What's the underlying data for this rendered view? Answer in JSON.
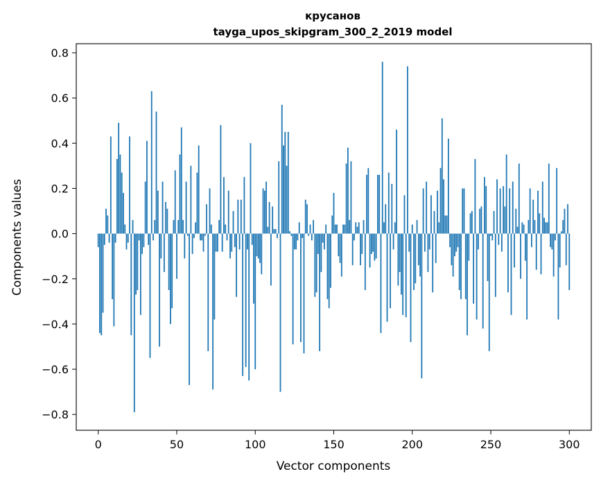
{
  "chart_data": {
    "type": "bar",
    "title": "крусанов",
    "subtitle": "tayga_upos_skipgram_300_2_2019 model",
    "xlabel": "Vector components",
    "ylabel": "Components values",
    "xlim": [
      -14,
      314
    ],
    "ylim": [
      -0.87,
      0.84
    ],
    "xticks": [
      0,
      50,
      100,
      150,
      200,
      250,
      300
    ],
    "xtick_labels": [
      "0",
      "50",
      "100",
      "150",
      "200",
      "250",
      "300"
    ],
    "yticks": [
      -0.8,
      -0.6,
      -0.4,
      -0.2,
      0.0,
      0.2,
      0.4,
      0.6,
      0.8
    ],
    "ytick_labels": [
      "−0.8",
      "−0.6",
      "−0.4",
      "−0.2",
      "0.0",
      "0.2",
      "0.4",
      "0.6",
      "0.8"
    ],
    "bar_color": "#1f77b4",
    "series": [
      {
        "name": "components",
        "values": [
          -0.06,
          -0.44,
          -0.45,
          -0.35,
          -0.05,
          0.11,
          0.08,
          -0.04,
          0.43,
          -0.29,
          -0.41,
          -0.04,
          0.33,
          0.49,
          0.35,
          0.27,
          0.18,
          0.04,
          -0.07,
          -0.04,
          0.43,
          -0.45,
          0.06,
          -0.79,
          -0.27,
          -0.25,
          -0.03,
          -0.36,
          -0.09,
          -0.06,
          0.23,
          0.41,
          -0.05,
          -0.55,
          0.63,
          -0.03,
          0.06,
          0.54,
          0.19,
          -0.5,
          -0.11,
          0.23,
          -0.17,
          0.14,
          0.11,
          -0.25,
          -0.4,
          -0.33,
          0.06,
          0.28,
          -0.2,
          0.06,
          0.35,
          0.47,
          0.06,
          -0.11,
          0.23,
          -0.01,
          -0.67,
          0.3,
          -0.09,
          -0.02,
          0.05,
          0.27,
          0.39,
          -0.03,
          -0.03,
          -0.08,
          -0.01,
          0.13,
          -0.52,
          0.2,
          0.04,
          -0.69,
          -0.38,
          -0.08,
          -0.08,
          0.06,
          0.48,
          -0.08,
          0.25,
          0.04,
          -0.03,
          0.19,
          -0.11,
          -0.08,
          0.1,
          -0.06,
          -0.28,
          0.15,
          -0.07,
          0.15,
          -0.63,
          0.25,
          -0.59,
          -0.07,
          -0.65,
          0.4,
          -0.05,
          -0.31,
          -0.6,
          -0.1,
          -0.11,
          -0.13,
          -0.18,
          0.2,
          0.19,
          0.23,
          0.03,
          0.14,
          -0.23,
          0.12,
          0.02,
          0.02,
          -0.02,
          0.32,
          -0.7,
          0.57,
          0.39,
          0.45,
          0.3,
          0.45,
          0.01,
          -0.01,
          -0.49,
          -0.07,
          -0.07,
          -0.03,
          0.05,
          -0.48,
          -0.02,
          -0.53,
          0.15,
          0.13,
          -0.01,
          0.04,
          -0.03,
          0.06,
          -0.28,
          -0.26,
          -0.09,
          -0.52,
          -0.17,
          -0.04,
          -0.07,
          0.04,
          -0.29,
          -0.33,
          -0.24,
          0.08,
          0.18,
          0.04,
          0.04,
          -0.1,
          -0.13,
          -0.19,
          0.04,
          0.04,
          0.31,
          0.38,
          0.06,
          0.32,
          -0.14,
          -0.03,
          0.05,
          0.03,
          0.05,
          -0.14,
          -0.09,
          0.06,
          -0.25,
          0.26,
          0.29,
          -0.15,
          -0.09,
          -0.08,
          -0.12,
          -0.11,
          0.26,
          0.26,
          -0.44,
          0.76,
          0.05,
          0.13,
          -0.39,
          0.27,
          -0.33,
          0.22,
          -0.07,
          0.05,
          0.46,
          -0.23,
          -0.17,
          -0.27,
          -0.36,
          0.17,
          -0.37,
          0.74,
          -0.08,
          -0.48,
          0.04,
          -0.25,
          -0.22,
          0.06,
          -0.14,
          -0.19,
          -0.64,
          0.2,
          -0.08,
          0.23,
          -0.17,
          -0.07,
          0.17,
          -0.26,
          0.1,
          -0.13,
          0.19,
          0.05,
          0.29,
          0.51,
          0.24,
          0.08,
          0.08,
          0.42,
          -0.06,
          -0.14,
          -0.19,
          -0.1,
          -0.08,
          -0.06,
          -0.25,
          -0.29,
          0.2,
          0.2,
          -0.29,
          -0.45,
          -0.12,
          0.09,
          0.1,
          -0.31,
          0.33,
          -0.38,
          -0.07,
          0.11,
          0.12,
          -0.42,
          0.25,
          0.21,
          -0.21,
          -0.52,
          -0.01,
          -0.03,
          0.1,
          -0.28,
          0.24,
          -0.05,
          0.2,
          -0.08,
          0.21,
          0.12,
          0.35,
          -0.26,
          0.2,
          -0.36,
          0.23,
          -0.15,
          0.11,
          0.03,
          0.31,
          -0.2,
          0.05,
          0.04,
          -0.12,
          -0.38,
          0.06,
          0.2,
          -0.06,
          0.15,
          0.06,
          -0.16,
          0.19,
          0.09,
          -0.18,
          0.23,
          0.07,
          0.05,
          0.05,
          0.31,
          -0.06,
          -0.07,
          -0.19,
          -0.03,
          0.29,
          -0.38,
          -0.15,
          0.01,
          0.06,
          0.11,
          -0.14,
          0.13,
          -0.25
        ]
      }
    ]
  }
}
